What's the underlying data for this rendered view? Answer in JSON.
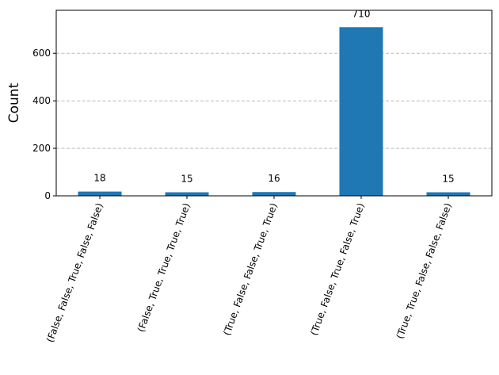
{
  "chart_data": {
    "type": "bar",
    "categories": [
      "(False, False, True, False, False)",
      "(False, True, True, True, True)",
      "(True, False, False, True, True)",
      "(True, False, True, False, True)",
      "(True, True, False, False, False)"
    ],
    "values": [
      18,
      15,
      16,
      710,
      15
    ],
    "data_labels": [
      "18",
      "15",
      "16",
      "710",
      "15"
    ],
    "ylabel": "Count",
    "xlabel": "",
    "ylim": [
      0,
      781
    ],
    "yticks": [
      0,
      200,
      400,
      600
    ],
    "ytick_labels": [
      "0",
      "200",
      "400",
      "600"
    ],
    "grid": "horizontal-dashed",
    "bar_color": "#1f77b4"
  }
}
